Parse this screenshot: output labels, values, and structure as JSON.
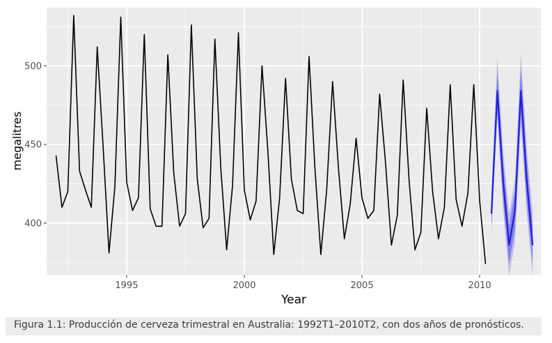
{
  "chart_data": {
    "type": "line",
    "xlabel": "Year",
    "ylabel": "megalitres",
    "xlim": [
      1991.6,
      2012.6
    ],
    "ylim": [
      367,
      537
    ],
    "x_ticks": [
      1995,
      2000,
      2005,
      2010
    ],
    "y_ticks": [
      400,
      450,
      500
    ],
    "grid": true,
    "legend": "none",
    "series": [
      {
        "color": "#000000",
        "x": [
          1992.0,
          1992.25,
          1992.5,
          1992.75,
          1993.0,
          1993.25,
          1993.5,
          1993.75,
          1994.0,
          1994.25,
          1994.5,
          1994.75,
          1995.0,
          1995.25,
          1995.5,
          1995.75,
          1996.0,
          1996.25,
          1996.5,
          1996.75,
          1997.0,
          1997.25,
          1997.5,
          1997.75,
          1998.0,
          1998.25,
          1998.5,
          1998.75,
          1999.0,
          1999.25,
          1999.5,
          1999.75,
          2000.0,
          2000.25,
          2000.5,
          2000.75,
          2001.0,
          2001.25,
          2001.5,
          2001.75,
          2002.0,
          2002.25,
          2002.5,
          2002.75,
          2003.0,
          2003.25,
          2003.5,
          2003.75,
          2004.0,
          2004.25,
          2004.5,
          2004.75,
          2005.0,
          2005.25,
          2005.5,
          2005.75,
          2006.0,
          2006.25,
          2006.5,
          2006.75,
          2007.0,
          2007.25,
          2007.5,
          2007.75,
          2008.0,
          2008.25,
          2008.5,
          2008.75,
          2009.0,
          2009.25,
          2009.5,
          2009.75,
          2010.0,
          2010.25
        ],
        "values": [
          443,
          410,
          420,
          532,
          433,
          421,
          410,
          512,
          449,
          381,
          423,
          531,
          426,
          408,
          416,
          520,
          409,
          398,
          398,
          507,
          432,
          398,
          406,
          526,
          428,
          397,
          403,
          517,
          435,
          383,
          424,
          521,
          421,
          402,
          414,
          500,
          446,
          380,
          416,
          492,
          428,
          408,
          406,
          506,
          435,
          380,
          421,
          490,
          435,
          390,
          412,
          454,
          416,
          403,
          408,
          482,
          438,
          386,
          405,
          491,
          427,
          383,
          394,
          473,
          420,
          390,
          410,
          488,
          415,
          398,
          419,
          488,
          414,
          374
        ]
      },
      {
        "color": "#1f1fe0",
        "x": [
          2010.5,
          2010.75,
          2011.0,
          2011.25,
          2011.5,
          2011.75,
          2012.0,
          2012.25
        ],
        "values": [
          406,
          484,
          426,
          386,
          408,
          484,
          427,
          386
        ]
      }
    ],
    "intervals": [
      {
        "color": "#1f1fe0",
        "x": [
          2010.5,
          2010.75,
          2011.0,
          2011.25,
          2011.5,
          2011.75,
          2012.0,
          2012.25
        ],
        "lower_80": [
          398,
          472,
          414,
          374,
          396,
          470,
          414,
          374
        ],
        "upper_80": [
          414,
          496,
          438,
          398,
          420,
          498,
          440,
          398
        ],
        "lower_95": [
          392,
          466,
          408,
          366,
          388,
          462,
          406,
          366
        ],
        "upper_95": [
          420,
          506,
          446,
          406,
          428,
          508,
          448,
          406
        ]
      }
    ]
  },
  "caption": "Figura 1.1: Producción de cerveza trimestral en Australia: 1992T1–2010T2, con dos años de pronósticos."
}
